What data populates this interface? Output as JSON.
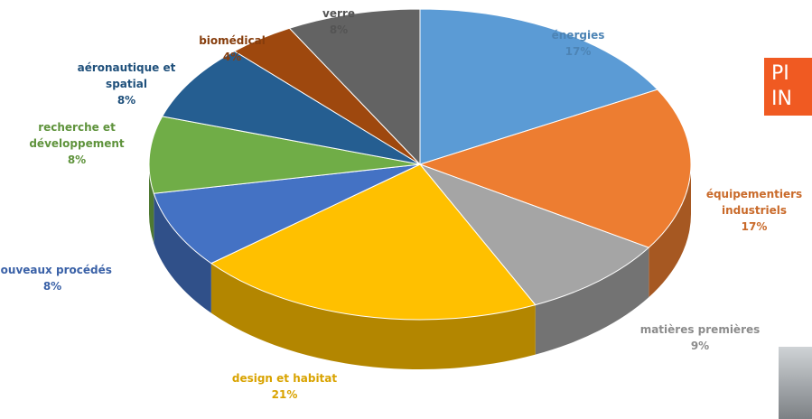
{
  "chart_data": {
    "type": "pie",
    "categories": [
      "énergies",
      "équipementiers industriels",
      "matières premières",
      "design et habitat",
      "nouveaux procédés",
      "recherche et développement",
      "aéronautique et spatial",
      "biomédical",
      "verre"
    ],
    "values": [
      17,
      17,
      9,
      21,
      8,
      8,
      8,
      4,
      8
    ],
    "value_labels": [
      "17%",
      "17%",
      "9%",
      "21%",
      "8%",
      "8%",
      "8%",
      "4%",
      "8%"
    ],
    "colors": [
      "#5b9bd5",
      "#ed7d31",
      "#a5a5a5",
      "#ffc000",
      "#4472c4",
      "#70ad47",
      "#255e91",
      "#9e480e",
      "#636363"
    ]
  },
  "banner": {
    "lines": [
      "PI",
      "IN"
    ]
  }
}
